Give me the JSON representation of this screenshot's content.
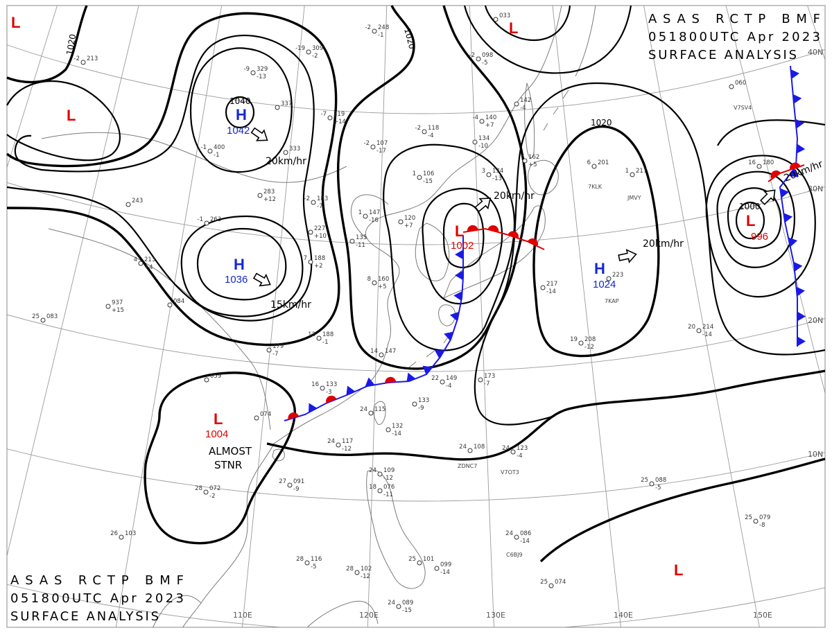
{
  "header_top": {
    "line1": "ASAS RCTP BMF",
    "line2": "051800UTC Apr 2023",
    "line3": "SURFACE ANALYSIS"
  },
  "header_bottom": {
    "line1": "ASAS RCTP BMF",
    "line2": "051800UTC Apr 2023",
    "line3": "SURFACE ANALYSIS"
  },
  "pressure_centers": [
    {
      "letter": "H",
      "value": "1042"
    },
    {
      "letter": "H",
      "value": "1036"
    },
    {
      "letter": "H",
      "value": "1024"
    },
    {
      "letter": "L",
      "value": "1002"
    },
    {
      "letter": "L",
      "value": "1004"
    },
    {
      "letter": "L",
      "value": "996"
    }
  ],
  "extra_lows": [
    {
      "letter": "L"
    },
    {
      "letter": "L"
    },
    {
      "letter": "L"
    },
    {
      "letter": "L"
    }
  ],
  "movement": [
    "20km/hr",
    "15km/hr",
    "20km/hr",
    "20km/hr",
    "20km/hr"
  ],
  "stationary_note": [
    "ALMOST",
    "STNR"
  ],
  "isobar_labels": [
    "1020",
    "1040",
    "1020",
    "1020",
    "1000"
  ],
  "latitudes": [
    "40N",
    "30N",
    "20N",
    "10N"
  ],
  "longitudes": [
    "110E",
    "120E",
    "130E",
    "140E",
    "150E"
  ],
  "ship_ids": [
    "V7SV4",
    "7KLK",
    "JMVY",
    "7KAP",
    "ZDNC7",
    "V7OT3",
    "C6BJ9"
  ],
  "stations": [
    {
      "t": "-2",
      "p": "213"
    },
    {
      "t": "-2",
      "p": "248",
      "d": "-1"
    },
    {
      "t": "-19",
      "p": "309",
      "d": "-2"
    },
    {
      "t": "-9",
      "p": "329",
      "d": "-13"
    },
    {
      "p": "337"
    },
    {
      "t": "-7",
      "p": "219",
      "d": "+14"
    },
    {
      "t": "-2",
      "p": "118",
      "d": "-4"
    },
    {
      "t": "-2",
      "p": "107",
      "d": "-17"
    },
    {
      "t": "-4",
      "p": "140",
      "d": "+7"
    },
    {
      "p": "134",
      "d": "-10"
    },
    {
      "p": "142",
      "d": "-4"
    },
    {
      "t": "-2",
      "p": "098",
      "d": "-5"
    },
    {
      "p": "033"
    },
    {
      "p": "060"
    },
    {
      "p": "162",
      "d": "+5"
    },
    {
      "t": "6",
      "p": "201"
    },
    {
      "t": "1",
      "p": "217"
    },
    {
      "t": "3",
      "p": "134",
      "d": "-13"
    },
    {
      "t": "1",
      "p": "106",
      "d": "-15"
    },
    {
      "t": "-1",
      "p": "400",
      "d": "-1"
    },
    {
      "p": "333"
    },
    {
      "p": "283",
      "d": "+12"
    },
    {
      "t": "-2",
      "p": "183",
      "d": "-7"
    },
    {
      "t": "1",
      "p": "147",
      "d": "-16"
    },
    {
      "p": "120",
      "d": "+7"
    },
    {
      "t": "-1",
      "p": "263"
    },
    {
      "p": "227",
      "d": "+10"
    },
    {
      "p": "135",
      "d": "-11"
    },
    {
      "p": "243"
    },
    {
      "t": "7",
      "p": "188",
      "d": "+2"
    },
    {
      "t": "8",
      "p": "160",
      "d": "+5"
    },
    {
      "p": "217",
      "d": "-14"
    },
    {
      "p": "223"
    },
    {
      "t": "4",
      "p": "213",
      "d": "+4"
    },
    {
      "p": "937",
      "d": "+15"
    },
    {
      "t": "25",
      "p": "083"
    },
    {
      "p": "084"
    },
    {
      "p": "179",
      "d": "-7"
    },
    {
      "t": "12",
      "p": "188",
      "d": "-1"
    },
    {
      "t": "14",
      "p": "147"
    },
    {
      "t": "19",
      "p": "208",
      "d": "-12"
    },
    {
      "t": "20",
      "p": "214",
      "d": "-14"
    },
    {
      "p": "173",
      "d": "-7"
    },
    {
      "t": "22",
      "p": "149",
      "d": "-4"
    },
    {
      "t": "16",
      "p": "133",
      "d": "-3"
    },
    {
      "p": "133",
      "d": "-9"
    },
    {
      "t": "24",
      "p": "115"
    },
    {
      "p": "132",
      "d": "-14"
    },
    {
      "t": "24",
      "p": "117",
      "d": "-12"
    },
    {
      "p": "059"
    },
    {
      "p": "074"
    },
    {
      "t": "27",
      "p": "091",
      "d": "-9"
    },
    {
      "t": "28",
      "p": "072",
      "d": "-2"
    },
    {
      "t": "24",
      "p": "108"
    },
    {
      "t": "24",
      "p": "123",
      "d": "-4"
    },
    {
      "t": "24",
      "p": "109",
      "d": "-12"
    },
    {
      "t": "18",
      "p": "076",
      "d": "-11"
    },
    {
      "t": "25",
      "p": "088",
      "d": "-5"
    },
    {
      "t": "25",
      "p": "079",
      "d": "-8"
    },
    {
      "t": "24",
      "p": "086",
      "d": "-14"
    },
    {
      "t": "26",
      "p": "103"
    },
    {
      "t": "28",
      "p": "116",
      "d": "-5"
    },
    {
      "t": "25",
      "p": "101"
    },
    {
      "p": "099",
      "d": "-14"
    },
    {
      "t": "28",
      "p": "102",
      "d": "-12"
    },
    {
      "t": "25",
      "p": "074"
    },
    {
      "t": "24",
      "p": "089",
      "d": "-15"
    },
    {
      "t": "16",
      "p": "180"
    }
  ],
  "colors": {
    "high": "#1428d2",
    "low": "#e00000",
    "cold_front": "#1a1ae6",
    "warm_front": "#e00000",
    "isobar": "#000000"
  }
}
